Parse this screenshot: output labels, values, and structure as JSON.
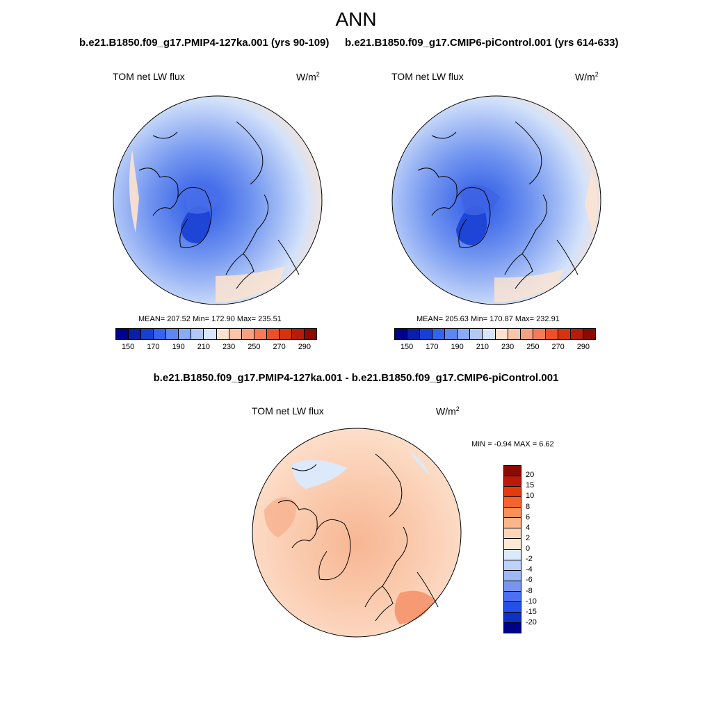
{
  "title": "ANN",
  "panels": [
    {
      "case": "b.e21.B1850.f09_g17.PMIP4-127ka.001 (yrs 90-109)",
      "variable": "TOM net LW flux",
      "units": "W/m",
      "units_sup": "2",
      "stats": {
        "mean": "207.52",
        "min": "172.90",
        "max": "235.51"
      }
    },
    {
      "case": "b.e21.B1850.f09_g17.CMIP6-piControl.001 (yrs 614-633)",
      "variable": "TOM net LW flux",
      "units": "W/m",
      "units_sup": "2",
      "stats": {
        "mean": "205.63",
        "min": "170.87",
        "max": "232.91"
      }
    }
  ],
  "colorbar_abs": {
    "colors": [
      "#00008c",
      "#0a1ea8",
      "#1440d4",
      "#3264f0",
      "#5a87f0",
      "#8aaaf5",
      "#b4c8f8",
      "#d8e6fa",
      "#fde3cf",
      "#fcc4a8",
      "#f9a07e",
      "#f67c56",
      "#ef4f26",
      "#d8320c",
      "#b81b08",
      "#8b0a00"
    ],
    "labels": [
      "150",
      "170",
      "190",
      "210",
      "230",
      "250",
      "270",
      "290"
    ]
  },
  "diff": {
    "title": "b.e21.B1850.f09_g17.PMIP4-127ka.001 - b.e21.B1850.f09_g17.CMIP6-piControl.001",
    "variable": "TOM net LW flux",
    "units": "W/m",
    "units_sup": "2",
    "minmax_label": "MIN =  -0.94 MAX =   6.62",
    "colorbar": {
      "colors": [
        "#8b0a00",
        "#b81b08",
        "#e63a0e",
        "#f6642e",
        "#f9905c",
        "#fcb48a",
        "#fdd5b8",
        "#fde8d6",
        "#dce9fb",
        "#bdd2f8",
        "#9cb8f5",
        "#7896f0",
        "#4d6ff0",
        "#2550e6",
        "#0f30c4",
        "#00008c"
      ],
      "labels": [
        "20",
        "15",
        "10",
        "8",
        "6",
        "4",
        "2",
        "0",
        "-2",
        "-4",
        "-6",
        "-8",
        "-10",
        "-15",
        "-20"
      ]
    }
  }
}
